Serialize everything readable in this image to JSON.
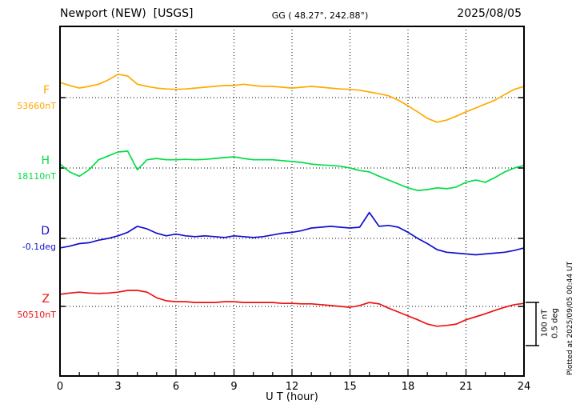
{
  "header": {
    "station": "Newport (NEW)  [USGS]",
    "gg": "GG ( 48.27°, 242.88°)",
    "date": "2025/08/05"
  },
  "footer": {
    "plotted_at": "Plotted at 2025/09/05 00:44 UT"
  },
  "scale_bar": {
    "nt_label": "100 nT",
    "deg_label": "0.5 deg"
  },
  "chart_data": {
    "type": "line",
    "title": "Newport (NEW) [USGS] magnetogram for 2025/08/05",
    "xlabel": "U T (hour)",
    "xlim": [
      0,
      24
    ],
    "x_ticks": [
      0,
      3,
      6,
      9,
      12,
      15,
      18,
      21,
      24
    ],
    "x_minor_step": 1,
    "grid": "dotted vertical lines every 3 h; dotted horizontal baseline per channel",
    "legend_position": "left channel labels",
    "scale": {
      "nT_per_div": 100,
      "deg_per_div": 0.5
    },
    "x": [
      0,
      0.5,
      1,
      1.5,
      2,
      2.5,
      3,
      3.5,
      4,
      4.5,
      5,
      5.5,
      6,
      6.5,
      7,
      7.5,
      8,
      8.5,
      9,
      9.5,
      10,
      10.5,
      11,
      11.5,
      12,
      12.5,
      13,
      13.5,
      14,
      14.5,
      15,
      15.5,
      16,
      16.5,
      17,
      17.5,
      18,
      18.5,
      19,
      19.5,
      20,
      20.5,
      21,
      21.5,
      22,
      22.5,
      23,
      23.5,
      24
    ],
    "series": [
      {
        "name": "F",
        "unit": "nT",
        "color": "#ffaa00",
        "baseline_label": "53660nT",
        "baseline_value": 53660,
        "values": [
          53695,
          53688,
          53682,
          53686,
          53691,
          53701,
          53714,
          53710,
          53691,
          53686,
          53682,
          53680,
          53679,
          53680,
          53682,
          53684,
          53686,
          53688,
          53688,
          53691,
          53688,
          53686,
          53686,
          53684,
          53682,
          53684,
          53686,
          53684,
          53682,
          53680,
          53679,
          53677,
          53673,
          53669,
          53664,
          53654,
          53641,
          53627,
          53612,
          53603,
          53608,
          53617,
          53627,
          53636,
          53645,
          53654,
          53667,
          53679,
          53686
        ]
      },
      {
        "name": "H",
        "unit": "nT",
        "color": "#00dd44",
        "baseline_label": "18110nT",
        "baseline_value": 18110,
        "values": [
          18119,
          18101,
          18091,
          18106,
          18129,
          18138,
          18147,
          18149,
          18106,
          18129,
          18132,
          18129,
          18129,
          18130,
          18129,
          18130,
          18132,
          18134,
          18136,
          18132,
          18129,
          18129,
          18129,
          18127,
          18125,
          18123,
          18119,
          18117,
          18116,
          18114,
          18110,
          18104,
          18101,
          18091,
          18082,
          18073,
          18064,
          18058,
          18060,
          18064,
          18062,
          18066,
          18077,
          18082,
          18077,
          18088,
          18101,
          18110,
          18116
        ]
      },
      {
        "name": "D",
        "unit": "deg",
        "color": "#1111cc",
        "baseline_label": "-0.1deg",
        "baseline_value": -0.1,
        "values": [
          -0.21,
          -0.19,
          -0.16,
          -0.15,
          -0.12,
          -0.1,
          -0.07,
          -0.03,
          0.04,
          0.01,
          -0.04,
          -0.07,
          -0.05,
          -0.07,
          -0.08,
          -0.07,
          -0.08,
          -0.09,
          -0.07,
          -0.08,
          -0.09,
          -0.08,
          -0.06,
          -0.04,
          -0.03,
          -0.01,
          0.02,
          0.03,
          0.04,
          0.03,
          0.02,
          0.03,
          0.2,
          0.04,
          0.05,
          0.03,
          -0.03,
          -0.1,
          -0.16,
          -0.23,
          -0.26,
          -0.27,
          -0.28,
          -0.29,
          -0.28,
          -0.27,
          -0.26,
          -0.24,
          -0.21
        ]
      },
      {
        "name": "Z",
        "unit": "nT",
        "color": "#ee1111",
        "baseline_label": "50510nT",
        "baseline_value": 50510,
        "values": [
          50538,
          50541,
          50543,
          50541,
          50540,
          50541,
          50543,
          50547,
          50547,
          50543,
          50530,
          50523,
          50521,
          50521,
          50519,
          50519,
          50519,
          50521,
          50521,
          50519,
          50519,
          50519,
          50519,
          50517,
          50517,
          50516,
          50516,
          50514,
          50512,
          50510,
          50508,
          50512,
          50519,
          50516,
          50506,
          50497,
          50488,
          50479,
          50469,
          50464,
          50466,
          50469,
          50479,
          50486,
          50493,
          50501,
          50508,
          50514,
          50517
        ]
      }
    ]
  }
}
